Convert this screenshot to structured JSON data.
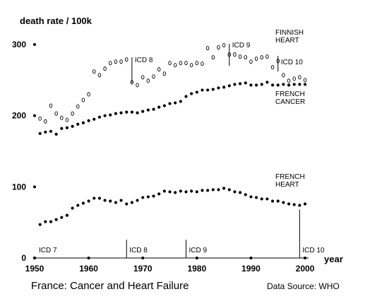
{
  "chart_data": {
    "type": "scatter",
    "ylabel": "death rate / 100k",
    "xlabel": "year",
    "xlim": [
      1950,
      2000
    ],
    "ylim": [
      0,
      300
    ],
    "xticks": [
      1950,
      1960,
      1970,
      1980,
      1990,
      2000
    ],
    "yticks": [
      0,
      100,
      200,
      300
    ],
    "caption": "France: Cancer and Heart Failure",
    "source": "Data Source: WHO",
    "series": [
      {
        "name": "FINNISH HEART",
        "marker": "open-circle",
        "x": [
          1951,
          1952,
          1953,
          1954,
          1955,
          1956,
          1957,
          1958,
          1959,
          1960,
          1961,
          1962,
          1963,
          1964,
          1965,
          1966,
          1967,
          1968,
          1969,
          1970,
          1971,
          1972,
          1973,
          1974,
          1975,
          1976,
          1977,
          1978,
          1979,
          1980,
          1981,
          1982,
          1983,
          1984,
          1985,
          1986,
          1987,
          1988,
          1989,
          1990,
          1991,
          1992,
          1993,
          1994,
          1995,
          1996,
          1997,
          1998,
          1999,
          2000
        ],
        "y": [
          196,
          192,
          214,
          203,
          197,
          194,
          203,
          213,
          222,
          230,
          262,
          257,
          266,
          274,
          276,
          276,
          279,
          247,
          243,
          254,
          249,
          255,
          265,
          259,
          274,
          271,
          274,
          274,
          271,
          274,
          273,
          295,
          282,
          296,
          299,
          286,
          286,
          283,
          282,
          276,
          280,
          282,
          283,
          268,
          277,
          257,
          249,
          252,
          254,
          250
        ]
      },
      {
        "name": "FRENCH CANCER",
        "marker": "filled-dot",
        "x": [
          1951,
          1952,
          1953,
          1954,
          1955,
          1956,
          1957,
          1958,
          1959,
          1960,
          1961,
          1962,
          1963,
          1964,
          1965,
          1966,
          1967,
          1968,
          1969,
          1970,
          1971,
          1972,
          1973,
          1974,
          1975,
          1976,
          1977,
          1978,
          1979,
          1980,
          1981,
          1982,
          1983,
          1984,
          1985,
          1986,
          1987,
          1988,
          1989,
          1990,
          1991,
          1992,
          1993,
          1994,
          1995,
          1996,
          1997,
          1998,
          1999,
          2000
        ],
        "y": [
          175,
          177,
          178,
          174,
          182,
          183,
          185,
          188,
          190,
          193,
          195,
          198,
          200,
          201,
          203,
          204,
          205,
          205,
          204,
          206,
          208,
          209,
          212,
          214,
          217,
          218,
          220,
          227,
          231,
          233,
          236,
          236,
          237,
          239,
          240,
          242,
          244,
          245,
          246,
          243,
          243,
          244,
          247,
          243,
          243,
          244,
          243,
          244,
          244,
          244
        ]
      },
      {
        "name": "FRENCH HEART",
        "marker": "filled-dot",
        "x": [
          1951,
          1952,
          1953,
          1954,
          1955,
          1956,
          1957,
          1958,
          1959,
          1960,
          1961,
          1962,
          1963,
          1964,
          1965,
          1966,
          1967,
          1968,
          1969,
          1970,
          1971,
          1972,
          1973,
          1974,
          1975,
          1976,
          1977,
          1978,
          1979,
          1980,
          1981,
          1982,
          1983,
          1984,
          1985,
          1986,
          1987,
          1988,
          1989,
          1990,
          1991,
          1992,
          1993,
          1994,
          1995,
          1996,
          1997,
          1998,
          1999,
          2000
        ],
        "y": [
          47,
          51,
          51,
          54,
          57,
          60,
          70,
          74,
          77,
          80,
          84,
          84,
          81,
          80,
          78,
          81,
          76,
          78,
          81,
          85,
          86,
          87,
          90,
          94,
          93,
          92,
          94,
          93,
          94,
          93,
          95,
          95,
          96,
          96,
          98,
          96,
          93,
          92,
          89,
          86,
          85,
          83,
          83,
          80,
          80,
          78,
          76,
          75,
          74,
          76
        ]
      }
    ],
    "annotations": [
      {
        "text": "ICD 7",
        "x": 1950,
        "placement": "bottom"
      },
      {
        "text": "ICD 8",
        "x": 1967,
        "placement": "bottom"
      },
      {
        "text": "ICD 9",
        "x": 1978,
        "placement": "bottom"
      },
      {
        "text": "ICD 10",
        "x": 1999,
        "placement": "bottom"
      },
      {
        "text": "ICD 8",
        "x": 1968,
        "placement": "top"
      },
      {
        "text": "ICD 9",
        "x": 1986,
        "placement": "top"
      },
      {
        "text": "ICD 10",
        "x": 1995,
        "placement": "top"
      }
    ]
  }
}
